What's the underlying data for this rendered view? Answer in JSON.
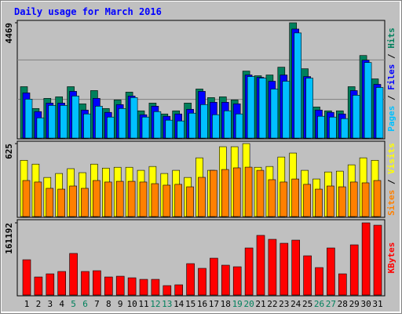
{
  "chart_data": [
    {
      "type": "bar",
      "title": "Daily usage for March 2016",
      "categories": [
        "1",
        "2",
        "3",
        "4",
        "5",
        "6",
        "7",
        "8",
        "9",
        "10",
        "11",
        "12",
        "13",
        "14",
        "15",
        "16",
        "17",
        "18",
        "19",
        "20",
        "21",
        "22",
        "23",
        "24",
        "25",
        "26",
        "27",
        "28",
        "29",
        "30",
        "31"
      ],
      "highlight": [
        "5",
        "6",
        "12",
        "13",
        "19",
        "20",
        "26",
        "27"
      ],
      "highlight_color": "#00805c",
      "legend_separator": " / ",
      "ylim": [
        0,
        4469
      ],
      "yticks": [
        4469
      ],
      "series": [
        {
          "name": "Pages",
          "color": "#00c0ff",
          "values": [
            1510,
            785,
            1268,
            1268,
            1631,
            936,
            1238,
            815,
            1147,
            1570,
            815,
            1027,
            694,
            664,
            966,
            1299,
            906,
            1057,
            936,
            2385,
            2325,
            1902,
            2204,
            4076,
            2325,
            846,
            815,
            755,
            1661,
            2929,
            1963
          ]
        },
        {
          "name": "Files",
          "color": "#0000ff",
          "values": [
            1752,
            1027,
            1359,
            1359,
            1812,
            1087,
            1540,
            997,
            1299,
            1631,
            906,
            1238,
            846,
            936,
            1117,
            1812,
            1389,
            1389,
            1329,
            2446,
            2355,
            2204,
            2446,
            4227,
            2385,
            1087,
            997,
            936,
            1842,
            3020,
            2083
          ]
        },
        {
          "name": "Hits",
          "color": "#00805c",
          "values": [
            1993,
            1147,
            1540,
            1600,
            1993,
            1329,
            1842,
            1147,
            1480,
            1782,
            1057,
            1359,
            936,
            1057,
            1359,
            1902,
            1570,
            1600,
            1480,
            2597,
            2416,
            2446,
            2748,
            4469,
            2687,
            1208,
            1057,
            1057,
            1993,
            3201,
            2295
          ]
        }
      ]
    },
    {
      "type": "bar",
      "ylim": [
        0,
        625
      ],
      "yticks": [
        625
      ],
      "series": [
        {
          "name": "Sites",
          "color": "#ff8000",
          "values": [
            309,
            296,
            242,
            235,
            262,
            242,
            309,
            296,
            302,
            302,
            296,
            282,
            269,
            276,
            255,
            336,
            396,
            403,
            417,
            423,
            396,
            316,
            296,
            322,
            276,
            235,
            262,
            255,
            296,
            289,
            309
          ]
        },
        {
          "name": "Visits",
          "color": "#ffff00",
          "values": [
            482,
            449,
            335,
            369,
            410,
            376,
            449,
            415,
            422,
            422,
            396,
            429,
            369,
            396,
            335,
            503,
            396,
            598,
            598,
            625,
            422,
            429,
            510,
            544,
            396,
            322,
            382,
            389,
            443,
            503,
            482
          ]
        }
      ]
    },
    {
      "type": "bar",
      "ylim": [
        0,
        161192
      ],
      "yticks": [
        161192
      ],
      "series": [
        {
          "name": "KBytes",
          "color": "#ff0000",
          "values": [
            78800,
            40300,
            47300,
            52600,
            92900,
            52600,
            54300,
            40300,
            42000,
            38500,
            35000,
            35000,
            21000,
            22800,
            70100,
            59600,
            82300,
            66600,
            63100,
            105100,
            133200,
            124400,
            115600,
            122600,
            87600,
            61300,
            105100,
            47300,
            112100,
            161192,
            155900
          ]
        }
      ]
    }
  ]
}
